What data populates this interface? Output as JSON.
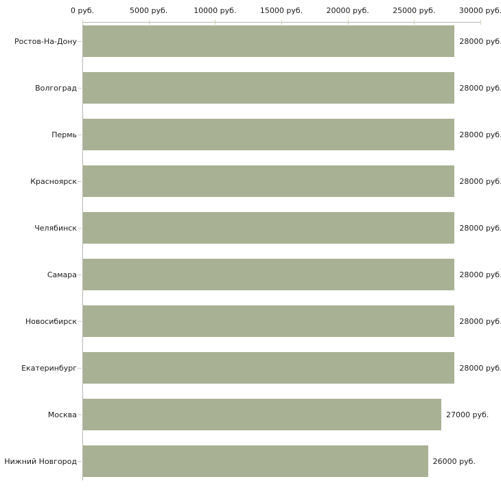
{
  "chart_data": {
    "type": "bar",
    "orientation": "horizontal",
    "title": "",
    "xlabel": "",
    "ylabel": "",
    "unit": "руб.",
    "categories": [
      "Ростов-На-Дону",
      "Волгоград",
      "Пермь",
      "Красноярск",
      "Челябинск",
      "Самара",
      "Новосибирск",
      "Екатеринбург",
      "Москва",
      "Нижний Новгород"
    ],
    "values": [
      28000,
      28000,
      28000,
      28000,
      28000,
      28000,
      28000,
      28000,
      27000,
      26000
    ],
    "value_labels": [
      "28000 руб.",
      "28000 руб.",
      "28000 руб.",
      "28000 руб.",
      "28000 руб.",
      "28000 руб.",
      "28000 руб.",
      "28000 руб.",
      "27000 руб.",
      "26000 руб."
    ],
    "x_axis": {
      "position": "top",
      "min": 0,
      "max": 30000,
      "ticks": [
        0,
        5000,
        10000,
        15000,
        20000,
        25000,
        30000
      ],
      "tick_labels": [
        "0 руб.",
        "5000 руб.",
        "10000 руб.",
        "15000 руб.",
        "20000 руб.",
        "25000 руб.",
        "30000 руб."
      ]
    },
    "grid": false,
    "legend": "none",
    "colors": {
      "bar": "#a9b195",
      "axis_line": "#b5b5b5",
      "tick_mark": "#cfcfba",
      "text": "#1a1a1a",
      "background": "#ffffff"
    }
  }
}
